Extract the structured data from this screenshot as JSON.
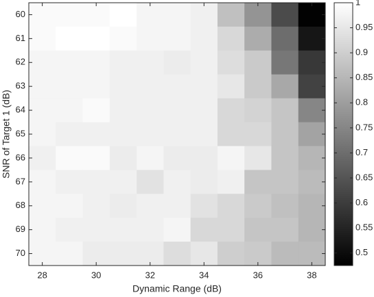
{
  "chart_data": {
    "type": "heatmap",
    "xlabel": "Dynamic Range (dB)",
    "ylabel": "SNR of Target 1 (dB)",
    "x": [
      28,
      29,
      30,
      31,
      32,
      33,
      34,
      35,
      36,
      37,
      38
    ],
    "y": [
      60,
      61,
      62,
      63,
      64,
      65,
      66,
      67,
      68,
      69,
      70
    ],
    "z": [
      [
        0.99,
        0.99,
        0.99,
        1.0,
        0.98,
        0.98,
        0.97,
        0.87,
        0.78,
        0.63,
        0.48
      ],
      [
        0.99,
        1.0,
        1.0,
        0.99,
        0.98,
        0.98,
        0.97,
        0.92,
        0.83,
        0.7,
        0.52
      ],
      [
        0.98,
        0.98,
        0.98,
        0.97,
        0.97,
        0.96,
        0.97,
        0.93,
        0.89,
        0.72,
        0.59
      ],
      [
        0.98,
        0.98,
        0.98,
        0.97,
        0.97,
        0.97,
        0.97,
        0.95,
        0.89,
        0.82,
        0.61
      ],
      [
        0.98,
        0.98,
        0.99,
        0.97,
        0.97,
        0.97,
        0.97,
        0.92,
        0.91,
        0.88,
        0.75
      ],
      [
        0.98,
        0.97,
        0.97,
        0.97,
        0.97,
        0.97,
        0.97,
        0.92,
        0.92,
        0.88,
        0.81
      ],
      [
        0.97,
        0.99,
        0.99,
        0.96,
        0.98,
        0.96,
        0.96,
        0.98,
        0.95,
        0.88,
        0.85
      ],
      [
        0.98,
        0.97,
        0.97,
        0.97,
        0.94,
        0.97,
        0.96,
        0.97,
        0.88,
        0.88,
        0.86
      ],
      [
        0.98,
        0.98,
        0.97,
        0.96,
        0.97,
        0.97,
        0.94,
        0.92,
        0.89,
        0.87,
        0.85
      ],
      [
        0.98,
        0.97,
        0.97,
        0.97,
        0.97,
        0.98,
        0.92,
        0.92,
        0.88,
        0.88,
        0.85
      ],
      [
        0.98,
        0.98,
        0.96,
        0.96,
        0.96,
        0.93,
        0.95,
        0.9,
        0.89,
        0.86,
        0.86
      ]
    ],
    "colormap": "gray",
    "xlim": [
      27.5,
      38.5
    ],
    "ylim": [
      59.5,
      70.5
    ],
    "y_reversed": true,
    "xticks": [
      28,
      30,
      32,
      34,
      36,
      38
    ],
    "yticks": [
      60,
      61,
      62,
      63,
      64,
      65,
      66,
      67,
      68,
      69,
      70
    ],
    "clim": [
      0.475,
      1.0
    ],
    "cticks": [
      0.5,
      0.55,
      0.6,
      0.65,
      0.7,
      0.75,
      0.8,
      0.85,
      0.9,
      0.95,
      1
    ]
  }
}
